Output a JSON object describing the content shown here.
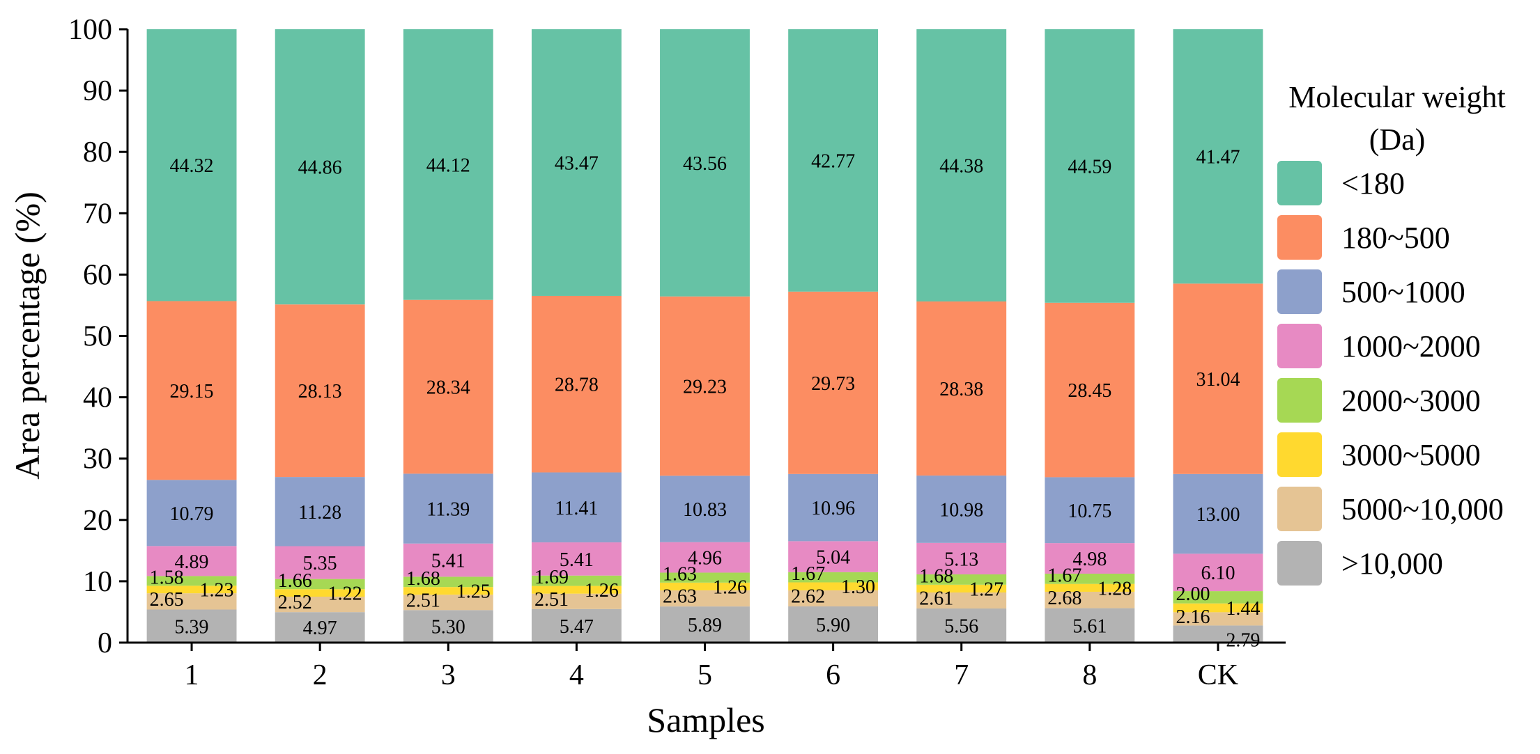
{
  "chart_data": {
    "type": "bar",
    "stacked": true,
    "title": "",
    "xlabel": "Samples",
    "ylabel": "Area percentage (%)",
    "ylim": [
      0,
      100
    ],
    "yticks": [
      "0",
      "10",
      "20",
      "30",
      "40",
      "50",
      "60",
      "70",
      "80",
      "90",
      "100"
    ],
    "grid": false,
    "categories": [
      "1",
      "2",
      "3",
      "4",
      "5",
      "6",
      "7",
      "8",
      "CK"
    ],
    "legend": {
      "title_line1": "Molecular weight",
      "title_line2": "(Da)",
      "position": "right"
    },
    "series": [
      {
        "name": ">10,000",
        "color": "#b3b3b3",
        "values": [
          5.39,
          4.97,
          5.3,
          5.47,
          5.89,
          5.9,
          5.56,
          5.61,
          2.79
        ],
        "labels": [
          "5.39",
          "4.97",
          "5.30",
          "5.47",
          "5.89",
          "5.90",
          "5.56",
          "5.61",
          "2.79"
        ]
      },
      {
        "name": "5000~10,000",
        "color": "#e5c494",
        "values": [
          2.65,
          2.52,
          2.51,
          2.51,
          2.63,
          2.62,
          2.61,
          2.68,
          2.16
        ],
        "labels": [
          "2.65",
          "2.52",
          "2.51",
          "2.51",
          "2.63",
          "2.62",
          "2.61",
          "2.68",
          "2.16"
        ]
      },
      {
        "name": "3000~5000",
        "color": "#ffd92f",
        "values": [
          1.23,
          1.22,
          1.25,
          1.26,
          1.26,
          1.3,
          1.27,
          1.28,
          1.44
        ],
        "labels": [
          "1.23",
          "1.22",
          "1.25",
          "1.26",
          "1.26",
          "1.30",
          "1.27",
          "1.28",
          "1.44"
        ]
      },
      {
        "name": "2000~3000",
        "color": "#a6d854",
        "values": [
          1.58,
          1.66,
          1.68,
          1.69,
          1.63,
          1.67,
          1.68,
          1.67,
          2.0
        ],
        "labels": [
          "1.58",
          "1.66",
          "1.68",
          "1.69",
          "1.63",
          "1.67",
          "1.68",
          "1.67",
          "2.00"
        ]
      },
      {
        "name": "1000~2000",
        "color": "#e78ac3",
        "values": [
          4.89,
          5.35,
          5.41,
          5.41,
          4.96,
          5.04,
          5.13,
          4.98,
          6.1
        ],
        "labels": [
          "4.89",
          "5.35",
          "5.41",
          "5.41",
          "4.96",
          "5.04",
          "5.13",
          "4.98",
          "6.10"
        ]
      },
      {
        "name": "500~1000",
        "color": "#8da0cb",
        "values": [
          10.79,
          11.28,
          11.39,
          11.41,
          10.83,
          10.96,
          10.98,
          10.75,
          13.0
        ],
        "labels": [
          "10.79",
          "11.28",
          "11.39",
          "11.41",
          "10.83",
          "10.96",
          "10.98",
          "10.75",
          "13.00"
        ]
      },
      {
        "name": "180~500",
        "color": "#fc8d62",
        "values": [
          29.15,
          28.13,
          28.34,
          28.78,
          29.23,
          29.73,
          28.38,
          28.45,
          31.04
        ],
        "labels": [
          "29.15",
          "28.13",
          "28.34",
          "28.78",
          "29.23",
          "29.73",
          "28.38",
          "28.45",
          "31.04"
        ]
      },
      {
        "name": "<180",
        "color": "#66c2a5",
        "values": [
          44.32,
          44.86,
          44.12,
          43.47,
          43.56,
          42.77,
          44.38,
          44.59,
          41.47
        ],
        "labels": [
          "44.32",
          "44.86",
          "44.12",
          "43.47",
          "43.56",
          "42.77",
          "44.38",
          "44.59",
          "41.47"
        ]
      }
    ]
  }
}
